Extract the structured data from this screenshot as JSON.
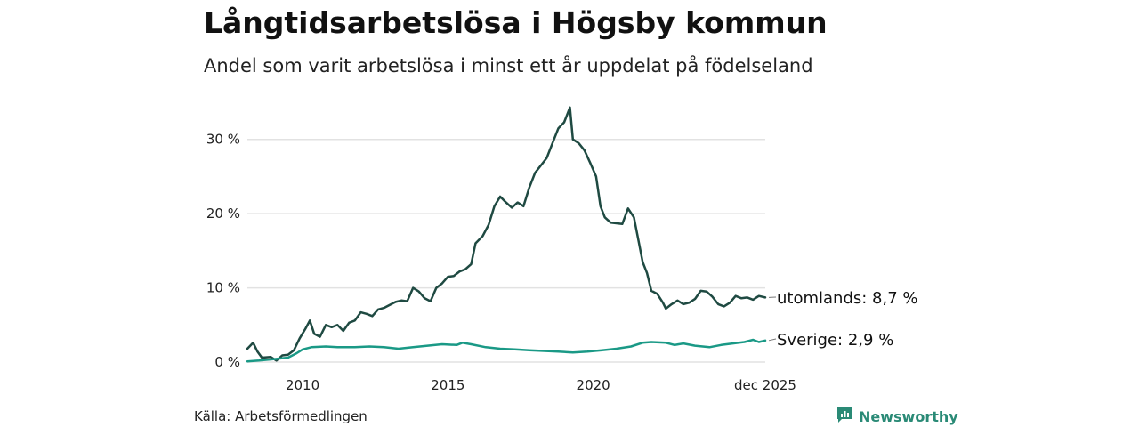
{
  "title": "Långtidsarbetslösa i Högsby kommun",
  "subtitle": "Andel som varit arbetslösa i minst ett år uppdelat på födelseland",
  "source": "Källa: Arbetsförmedlingen",
  "brand": {
    "name": "Newsworthy",
    "icon": "newsworthy-logo-icon",
    "color": "#2a8a76"
  },
  "colors": {
    "utomlands": "#1f4a42",
    "sverige": "#1a9986",
    "grid": "#e2e2e2"
  },
  "chart_data": {
    "type": "line",
    "title": "Långtidsarbetslösa i Högsby kommun",
    "subtitle": "Andel som varit arbetslösa i minst ett år uppdelat på födelseland",
    "xlabel": "",
    "ylabel": "",
    "xlim": [
      2008.1,
      2025.92
    ],
    "ylim": [
      0,
      35
    ],
    "yticks": [
      0,
      10,
      20,
      30
    ],
    "ytick_labels": [
      "0 %",
      "10 %",
      "20 %",
      "30 %"
    ],
    "xticks": [
      2010,
      2015,
      2020,
      2025.92
    ],
    "xtick_labels": [
      "2010",
      "2015",
      "2020",
      "dec 2025"
    ],
    "grid": "horizontal",
    "series": [
      {
        "name": "utomlands",
        "end_label": "utomlands: 8,7 %",
        "points": [
          [
            2008.1,
            1.8
          ],
          [
            2008.3,
            2.6
          ],
          [
            2008.45,
            1.4
          ],
          [
            2008.6,
            0.6
          ],
          [
            2008.9,
            0.7
          ],
          [
            2009.1,
            0.2
          ],
          [
            2009.3,
            0.9
          ],
          [
            2009.5,
            1.0
          ],
          [
            2009.7,
            1.6
          ],
          [
            2009.9,
            3.2
          ],
          [
            2010.1,
            4.5
          ],
          [
            2010.25,
            5.6
          ],
          [
            2010.4,
            3.8
          ],
          [
            2010.6,
            3.4
          ],
          [
            2010.8,
            5.0
          ],
          [
            2011.0,
            4.7
          ],
          [
            2011.2,
            5.0
          ],
          [
            2011.4,
            4.2
          ],
          [
            2011.6,
            5.3
          ],
          [
            2011.8,
            5.6
          ],
          [
            2012.0,
            6.7
          ],
          [
            2012.2,
            6.5
          ],
          [
            2012.4,
            6.2
          ],
          [
            2012.6,
            7.1
          ],
          [
            2012.8,
            7.3
          ],
          [
            2013.0,
            7.7
          ],
          [
            2013.2,
            8.1
          ],
          [
            2013.4,
            8.3
          ],
          [
            2013.6,
            8.2
          ],
          [
            2013.8,
            10.0
          ],
          [
            2014.0,
            9.5
          ],
          [
            2014.2,
            8.6
          ],
          [
            2014.4,
            8.2
          ],
          [
            2014.6,
            10.0
          ],
          [
            2014.8,
            10.6
          ],
          [
            2015.0,
            11.5
          ],
          [
            2015.2,
            11.6
          ],
          [
            2015.4,
            12.2
          ],
          [
            2015.6,
            12.5
          ],
          [
            2015.8,
            13.2
          ],
          [
            2015.95,
            16.0
          ],
          [
            2016.2,
            17.0
          ],
          [
            2016.4,
            18.5
          ],
          [
            2016.6,
            21.0
          ],
          [
            2016.8,
            22.3
          ],
          [
            2017.0,
            21.5
          ],
          [
            2017.2,
            20.8
          ],
          [
            2017.4,
            21.5
          ],
          [
            2017.6,
            21.0
          ],
          [
            2017.8,
            23.5
          ],
          [
            2018.0,
            25.5
          ],
          [
            2018.2,
            26.5
          ],
          [
            2018.4,
            27.5
          ],
          [
            2018.6,
            29.5
          ],
          [
            2018.8,
            31.5
          ],
          [
            2019.0,
            32.3
          ],
          [
            2019.2,
            34.3
          ],
          [
            2019.3,
            30.0
          ],
          [
            2019.5,
            29.5
          ],
          [
            2019.7,
            28.5
          ],
          [
            2019.9,
            26.8
          ],
          [
            2020.1,
            25.0
          ],
          [
            2020.25,
            21.0
          ],
          [
            2020.4,
            19.5
          ],
          [
            2020.6,
            18.8
          ],
          [
            2020.8,
            18.7
          ],
          [
            2021.0,
            18.6
          ],
          [
            2021.2,
            20.7
          ],
          [
            2021.4,
            19.5
          ],
          [
            2021.55,
            16.5
          ],
          [
            2021.7,
            13.5
          ],
          [
            2021.85,
            12.0
          ],
          [
            2022.0,
            9.6
          ],
          [
            2022.2,
            9.2
          ],
          [
            2022.4,
            8.0
          ],
          [
            2022.5,
            7.2
          ],
          [
            2022.7,
            7.8
          ],
          [
            2022.9,
            8.3
          ],
          [
            2023.1,
            7.8
          ],
          [
            2023.3,
            8.0
          ],
          [
            2023.5,
            8.5
          ],
          [
            2023.7,
            9.6
          ],
          [
            2023.9,
            9.5
          ],
          [
            2024.1,
            8.8
          ],
          [
            2024.3,
            7.8
          ],
          [
            2024.5,
            7.5
          ],
          [
            2024.7,
            8.0
          ],
          [
            2024.9,
            8.9
          ],
          [
            2025.1,
            8.6
          ],
          [
            2025.3,
            8.7
          ],
          [
            2025.5,
            8.4
          ],
          [
            2025.7,
            8.9
          ],
          [
            2025.92,
            8.7
          ]
        ]
      },
      {
        "name": "Sverige",
        "end_label": "Sverige: 2,9 %",
        "points": [
          [
            2008.1,
            0.1
          ],
          [
            2008.5,
            0.2
          ],
          [
            2009.0,
            0.4
          ],
          [
            2009.5,
            0.6
          ],
          [
            2009.8,
            1.2
          ],
          [
            2010.0,
            1.7
          ],
          [
            2010.3,
            2.0
          ],
          [
            2010.8,
            2.1
          ],
          [
            2011.2,
            2.0
          ],
          [
            2011.8,
            2.0
          ],
          [
            2012.3,
            2.1
          ],
          [
            2012.8,
            2.0
          ],
          [
            2013.3,
            1.8
          ],
          [
            2013.8,
            2.0
          ],
          [
            2014.3,
            2.2
          ],
          [
            2014.8,
            2.4
          ],
          [
            2015.3,
            2.3
          ],
          [
            2015.5,
            2.6
          ],
          [
            2015.8,
            2.4
          ],
          [
            2016.3,
            2.0
          ],
          [
            2016.8,
            1.8
          ],
          [
            2017.3,
            1.7
          ],
          [
            2017.8,
            1.6
          ],
          [
            2018.3,
            1.5
          ],
          [
            2018.8,
            1.4
          ],
          [
            2019.3,
            1.3
          ],
          [
            2019.8,
            1.4
          ],
          [
            2020.3,
            1.6
          ],
          [
            2020.8,
            1.8
          ],
          [
            2021.3,
            2.1
          ],
          [
            2021.7,
            2.6
          ],
          [
            2022.0,
            2.7
          ],
          [
            2022.5,
            2.6
          ],
          [
            2022.8,
            2.3
          ],
          [
            2023.1,
            2.5
          ],
          [
            2023.5,
            2.2
          ],
          [
            2024.0,
            2.0
          ],
          [
            2024.4,
            2.3
          ],
          [
            2024.8,
            2.5
          ],
          [
            2025.2,
            2.7
          ],
          [
            2025.5,
            3.0
          ],
          [
            2025.7,
            2.7
          ],
          [
            2025.92,
            2.9
          ]
        ]
      }
    ]
  }
}
